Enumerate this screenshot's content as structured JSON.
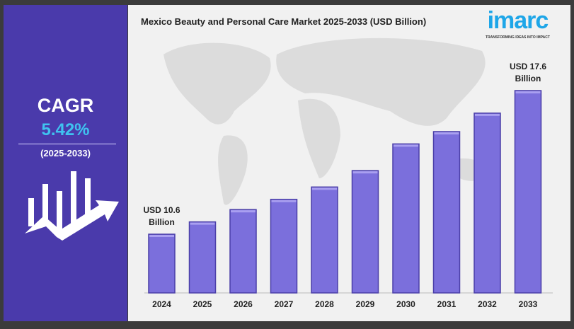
{
  "left_panel": {
    "cagr_label": "CAGR",
    "cagr_value": "5.42%",
    "period": "(2025-2033)"
  },
  "logo": {
    "word": "imarc",
    "tagline": "TRANSFORMING IDEAS INTO IMPACT"
  },
  "chart_data": {
    "type": "bar",
    "title": "Mexico Beauty and Personal Care Market 2025-2033 (USD Billion)",
    "categories": [
      "2024",
      "2025",
      "2026",
      "2027",
      "2028",
      "2029",
      "2030",
      "2031",
      "2032",
      "2033"
    ],
    "values": [
      10.6,
      11.2,
      11.8,
      12.3,
      12.9,
      13.7,
      15.0,
      15.6,
      16.5,
      17.6
    ],
    "annotations": [
      {
        "category": "2024",
        "text": [
          "USD 10.6",
          "Billion"
        ]
      },
      {
        "category": "2033",
        "text": [
          "USD 17.6",
          "Billion"
        ]
      }
    ],
    "xlabel": "",
    "ylabel": "",
    "grid": false,
    "colors": {
      "bar": "#7b6fdc",
      "bar_edge": "#4b3fa8"
    }
  }
}
